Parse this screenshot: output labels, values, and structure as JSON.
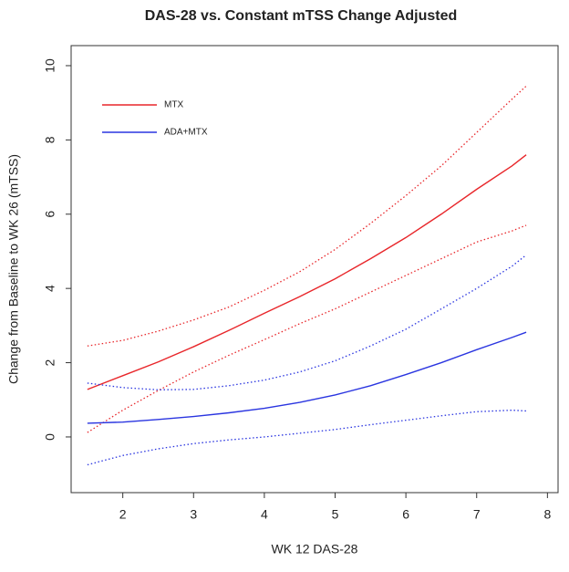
{
  "chart_data": {
    "type": "line",
    "title": "DAS-28  vs. Constant mTSS Change Adjusted",
    "x_label": "WK 12 DAS-28",
    "y_label": "Change  from Baseline to WK 26 (mTSS)",
    "x": [
      1.5,
      2,
      2.5,
      3,
      3.5,
      4,
      4.5,
      5,
      5.5,
      6,
      6.5,
      7,
      7.5,
      7.7
    ],
    "series": [
      {
        "name": "MTX",
        "color": "#e8262a",
        "values": [
          1.28,
          1.65,
          2.02,
          2.43,
          2.87,
          3.33,
          3.78,
          4.26,
          4.8,
          5.37,
          6.0,
          6.67,
          7.3,
          7.6
        ],
        "lower": [
          0.12,
          0.72,
          1.25,
          1.75,
          2.2,
          2.62,
          3.05,
          3.45,
          3.9,
          4.35,
          4.8,
          5.25,
          5.55,
          5.7
        ],
        "upper": [
          2.45,
          2.6,
          2.85,
          3.15,
          3.5,
          3.95,
          4.45,
          5.05,
          5.75,
          6.5,
          7.3,
          8.2,
          9.1,
          9.45
        ]
      },
      {
        "name": "ADA+MTX",
        "color": "#2a35e0",
        "values": [
          0.37,
          0.4,
          0.47,
          0.55,
          0.65,
          0.77,
          0.93,
          1.13,
          1.38,
          1.68,
          2.0,
          2.35,
          2.68,
          2.82
        ],
        "lower": [
          -0.75,
          -0.5,
          -0.32,
          -0.18,
          -0.08,
          0.0,
          0.1,
          0.2,
          0.33,
          0.45,
          0.57,
          0.68,
          0.72,
          0.7
        ],
        "upper": [
          1.45,
          1.33,
          1.27,
          1.28,
          1.38,
          1.53,
          1.75,
          2.05,
          2.45,
          2.9,
          3.45,
          4.0,
          4.6,
          4.9
        ]
      }
    ],
    "xlim": [
      1.27,
      8.15
    ],
    "ylim": [
      -1.5,
      10.54
    ],
    "xticks": [
      2,
      3,
      4,
      5,
      6,
      7,
      8
    ],
    "yticks": [
      0,
      2,
      4,
      6,
      8,
      10
    ],
    "legend": "top-left"
  }
}
